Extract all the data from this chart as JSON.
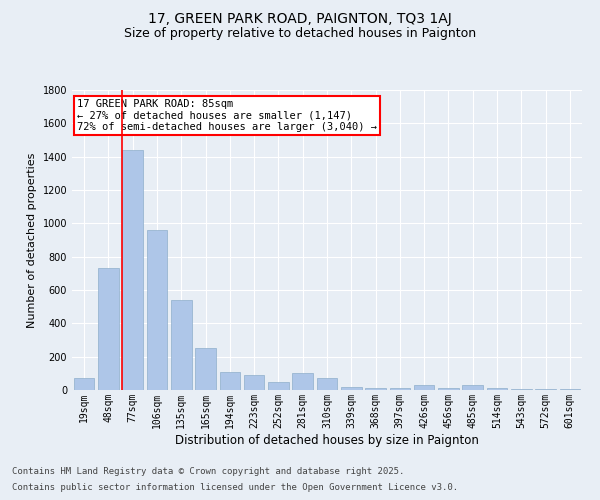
{
  "title": "17, GREEN PARK ROAD, PAIGNTON, TQ3 1AJ",
  "subtitle": "Size of property relative to detached houses in Paignton",
  "xlabel": "Distribution of detached houses by size in Paignton",
  "ylabel": "Number of detached properties",
  "categories": [
    "19sqm",
    "48sqm",
    "77sqm",
    "106sqm",
    "135sqm",
    "165sqm",
    "194sqm",
    "223sqm",
    "252sqm",
    "281sqm",
    "310sqm",
    "339sqm",
    "368sqm",
    "397sqm",
    "426sqm",
    "456sqm",
    "485sqm",
    "514sqm",
    "543sqm",
    "572sqm",
    "601sqm"
  ],
  "values": [
    75,
    730,
    1440,
    960,
    540,
    250,
    110,
    90,
    50,
    100,
    75,
    20,
    10,
    10,
    30,
    10,
    30,
    10,
    5,
    5,
    5
  ],
  "bar_color": "#aec6e8",
  "bar_edge_color": "#8faecb",
  "background_color": "#e8eef5",
  "grid_color": "#ffffff",
  "annotation_line1": "17 GREEN PARK ROAD: 85sqm",
  "annotation_line2": "← 27% of detached houses are smaller (1,147)",
  "annotation_line3": "72% of semi-detached houses are larger (3,040) →",
  "footnote1": "Contains HM Land Registry data © Crown copyright and database right 2025.",
  "footnote2": "Contains public sector information licensed under the Open Government Licence v3.0.",
  "ylim": [
    0,
    1800
  ],
  "yticks": [
    0,
    200,
    400,
    600,
    800,
    1000,
    1200,
    1400,
    1600,
    1800
  ],
  "red_line_x": 1.575,
  "title_fontsize": 10,
  "subtitle_fontsize": 9,
  "ylabel_fontsize": 8,
  "xlabel_fontsize": 8.5,
  "footnote_fontsize": 6.5,
  "tick_fontsize": 7
}
